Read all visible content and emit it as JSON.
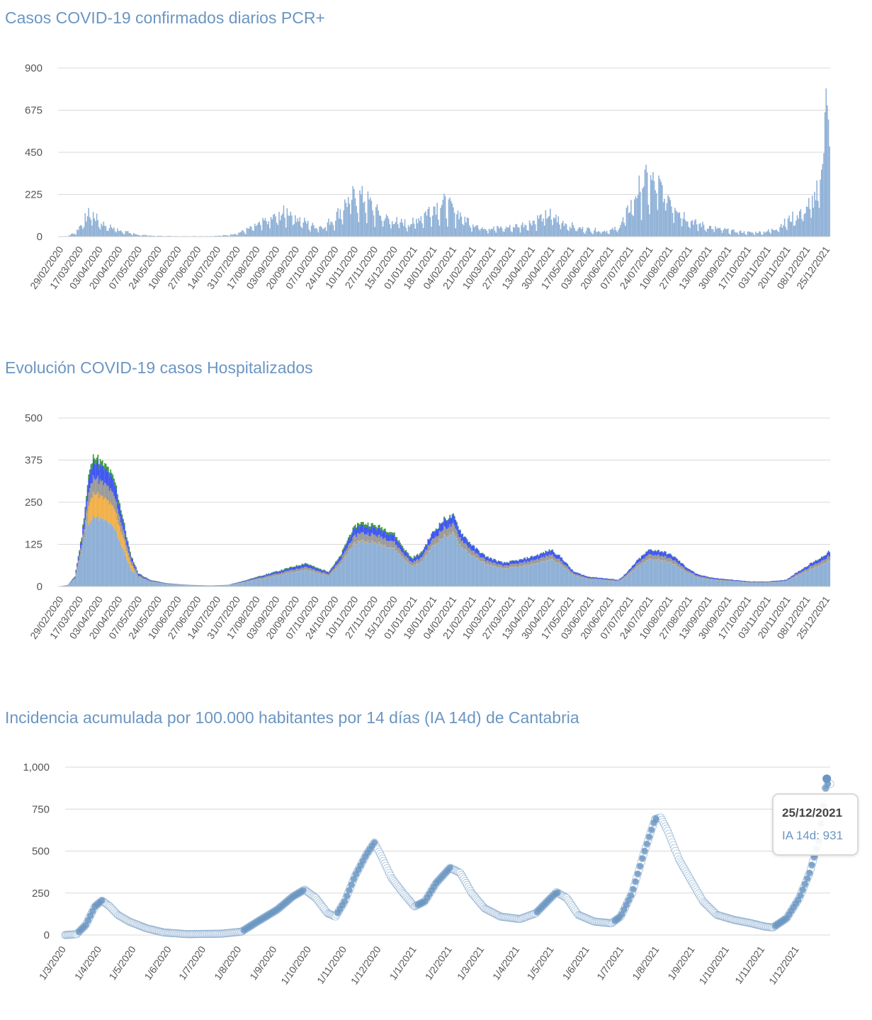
{
  "colors": {
    "title": "#6b96c2",
    "bars": "#8eb0d6",
    "bars_dark": "#7da2cb",
    "hosp_blue": "#3f56f2",
    "hosp_green": "#3e9a3a",
    "hosp_orange": "#f2b04a",
    "hosp_grey": "#9a9a9a",
    "points": "#6b96c2",
    "points_light": "#ffffff"
  },
  "tooltip": {
    "date": "25/12/2021",
    "value_text": "IA 14d: 931"
  },
  "chart_data": [
    {
      "id": "daily",
      "type": "bar",
      "title": "Casos COVID-19 confirmados diarios PCR+",
      "ylim": [
        0,
        900
      ],
      "yticks": [
        "0",
        "225",
        "450",
        "675",
        "900"
      ],
      "ytick_values": [
        0,
        225,
        450,
        675,
        900
      ],
      "xticks": [
        "29/02/2020",
        "17/03/2020",
        "03/04/2020",
        "20/04/2020",
        "07/05/2020",
        "24/05/2020",
        "10/06/2020",
        "27/06/2020",
        "14/07/2020",
        "31/07/2020",
        "17/08/2020",
        "03/09/2020",
        "20/09/2020",
        "07/10/2020",
        "24/10/2020",
        "10/11/2020",
        "27/11/2020",
        "15/12/2020",
        "01/01/2021",
        "18/01/2021",
        "04/02/2021",
        "21/02/2021",
        "10/03/2021",
        "27/03/2021",
        "13/04/2021",
        "30/04/2021",
        "17/05/2021",
        "03/06/2021",
        "20/06/2021",
        "07/07/2021",
        "24/07/2021",
        "10/08/2021",
        "27/08/2021",
        "13/09/2021",
        "30/09/2021",
        "17/10/2021",
        "03/11/2021",
        "20/11/2021",
        "08/12/2021",
        "25/12/2021"
      ],
      "x_start": "2020-02-29",
      "x_end": "2021-12-28",
      "series_anchors": [
        [
          "2020-02-29",
          0
        ],
        [
          "2020-03-08",
          3
        ],
        [
          "2020-03-15",
          25
        ],
        [
          "2020-03-22",
          90
        ],
        [
          "2020-03-28",
          135
        ],
        [
          "2020-04-02",
          95
        ],
        [
          "2020-04-10",
          60
        ],
        [
          "2020-04-20",
          40
        ],
        [
          "2020-05-01",
          20
        ],
        [
          "2020-05-10",
          8
        ],
        [
          "2020-05-25",
          4
        ],
        [
          "2020-06-15",
          2
        ],
        [
          "2020-07-10",
          3
        ],
        [
          "2020-07-25",
          8
        ],
        [
          "2020-08-05",
          25
        ],
        [
          "2020-08-15",
          50
        ],
        [
          "2020-08-25",
          80
        ],
        [
          "2020-09-05",
          110
        ],
        [
          "2020-09-15",
          140
        ],
        [
          "2020-09-25",
          95
        ],
        [
          "2020-10-05",
          60
        ],
        [
          "2020-10-15",
          55
        ],
        [
          "2020-10-25",
          100
        ],
        [
          "2020-11-01",
          160
        ],
        [
          "2020-11-08",
          210
        ],
        [
          "2020-11-15",
          220
        ],
        [
          "2020-11-22",
          200
        ],
        [
          "2020-11-30",
          140
        ],
        [
          "2020-12-10",
          95
        ],
        [
          "2020-12-20",
          80
        ],
        [
          "2020-12-30",
          70
        ],
        [
          "2021-01-08",
          110
        ],
        [
          "2021-01-18",
          160
        ],
        [
          "2021-01-28",
          180
        ],
        [
          "2021-02-05",
          150
        ],
        [
          "2021-02-15",
          100
        ],
        [
          "2021-02-25",
          60
        ],
        [
          "2021-03-10",
          45
        ],
        [
          "2021-03-25",
          50
        ],
        [
          "2021-04-10",
          70
        ],
        [
          "2021-04-20",
          100
        ],
        [
          "2021-04-30",
          120
        ],
        [
          "2021-05-10",
          80
        ],
        [
          "2021-05-25",
          45
        ],
        [
          "2021-06-10",
          35
        ],
        [
          "2021-06-20",
          30
        ],
        [
          "2021-06-28",
          50
        ],
        [
          "2021-07-05",
          120
        ],
        [
          "2021-07-12",
          220
        ],
        [
          "2021-07-20",
          300
        ],
        [
          "2021-07-28",
          290
        ],
        [
          "2021-08-05",
          260
        ],
        [
          "2021-08-15",
          190
        ],
        [
          "2021-08-25",
          110
        ],
        [
          "2021-09-05",
          70
        ],
        [
          "2021-09-20",
          45
        ],
        [
          "2021-10-05",
          30
        ],
        [
          "2021-10-20",
          22
        ],
        [
          "2021-11-01",
          25
        ],
        [
          "2021-11-10",
          40
        ],
        [
          "2021-11-20",
          80
        ],
        [
          "2021-11-30",
          120
        ],
        [
          "2021-12-08",
          160
        ],
        [
          "2021-12-15",
          210
        ],
        [
          "2021-12-20",
          280
        ],
        [
          "2021-12-23",
          460
        ],
        [
          "2021-12-25",
          850
        ],
        [
          "2021-12-26",
          730
        ],
        [
          "2021-12-27",
          600
        ],
        [
          "2021-12-28",
          460
        ]
      ]
    },
    {
      "id": "hosp",
      "type": "area",
      "title": "Evolución COVID-19 casos  Hospitalizados",
      "ylim": [
        0,
        500
      ],
      "yticks": [
        "0",
        "125",
        "250",
        "375",
        "500"
      ],
      "ytick_values": [
        0,
        125,
        250,
        375,
        500
      ],
      "xticks": [
        "29/02/2020",
        "17/03/2020",
        "03/04/2020",
        "20/04/2020",
        "07/05/2020",
        "24/05/2020",
        "10/06/2020",
        "27/06/2020",
        "14/07/2020",
        "31/07/2020",
        "17/08/2020",
        "03/09/2020",
        "20/09/2020",
        "07/10/2020",
        "24/10/2020",
        "10/11/2020",
        "27/11/2020",
        "15/12/2020",
        "01/01/2021",
        "18/01/2021",
        "04/02/2021",
        "21/02/2021",
        "10/03/2021",
        "27/03/2021",
        "13/04/2021",
        "30/04/2021",
        "17/05/2021",
        "03/06/2021",
        "20/06/2021",
        "07/07/2021",
        "24/07/2021",
        "10/08/2021",
        "27/08/2021",
        "13/09/2021",
        "30/09/2021",
        "17/10/2021",
        "03/11/2021",
        "20/11/2021",
        "08/12/2021",
        "25/12/2021"
      ],
      "x_start": "2020-02-29",
      "x_end": "2021-12-28",
      "series_anchors": [
        [
          "2020-02-29",
          0
        ],
        [
          "2020-03-08",
          5
        ],
        [
          "2020-03-14",
          30
        ],
        [
          "2020-03-20",
          150
        ],
        [
          "2020-03-26",
          330
        ],
        [
          "2020-03-31",
          395
        ],
        [
          "2020-04-05",
          370
        ],
        [
          "2020-04-12",
          350
        ],
        [
          "2020-04-18",
          310
        ],
        [
          "2020-04-25",
          200
        ],
        [
          "2020-05-01",
          100
        ],
        [
          "2020-05-08",
          40
        ],
        [
          "2020-05-18",
          20
        ],
        [
          "2020-06-01",
          10
        ],
        [
          "2020-06-20",
          5
        ],
        [
          "2020-07-10",
          3
        ],
        [
          "2020-07-25",
          5
        ],
        [
          "2020-08-05",
          15
        ],
        [
          "2020-08-20",
          30
        ],
        [
          "2020-09-05",
          45
        ],
        [
          "2020-09-20",
          60
        ],
        [
          "2020-09-30",
          70
        ],
        [
          "2020-10-10",
          55
        ],
        [
          "2020-10-20",
          45
        ],
        [
          "2020-10-30",
          90
        ],
        [
          "2020-11-08",
          160
        ],
        [
          "2020-11-15",
          190
        ],
        [
          "2020-11-25",
          185
        ],
        [
          "2020-12-05",
          175
        ],
        [
          "2020-12-15",
          160
        ],
        [
          "2020-12-25",
          110
        ],
        [
          "2020-12-31",
          85
        ],
        [
          "2021-01-08",
          100
        ],
        [
          "2021-01-18",
          160
        ],
        [
          "2021-01-28",
          200
        ],
        [
          "2021-02-05",
          210
        ],
        [
          "2021-02-12",
          160
        ],
        [
          "2021-02-22",
          120
        ],
        [
          "2021-03-05",
          90
        ],
        [
          "2021-03-20",
          70
        ],
        [
          "2021-04-05",
          80
        ],
        [
          "2021-04-20",
          95
        ],
        [
          "2021-05-01",
          110
        ],
        [
          "2021-05-10",
          85
        ],
        [
          "2021-05-20",
          45
        ],
        [
          "2021-06-01",
          30
        ],
        [
          "2021-06-15",
          25
        ],
        [
          "2021-06-28",
          20
        ],
        [
          "2021-07-05",
          40
        ],
        [
          "2021-07-15",
          80
        ],
        [
          "2021-07-25",
          110
        ],
        [
          "2021-08-05",
          105
        ],
        [
          "2021-08-15",
          90
        ],
        [
          "2021-08-25",
          60
        ],
        [
          "2021-09-05",
          35
        ],
        [
          "2021-09-20",
          25
        ],
        [
          "2021-10-05",
          20
        ],
        [
          "2021-10-20",
          15
        ],
        [
          "2021-11-05",
          15
        ],
        [
          "2021-11-20",
          20
        ],
        [
          "2021-12-01",
          45
        ],
        [
          "2021-12-10",
          65
        ],
        [
          "2021-12-20",
          85
        ],
        [
          "2021-12-28",
          105
        ]
      ],
      "overlays": {
        "blue_top_ratio": 0.12,
        "green_top_ratio": 0.04,
        "orange_peak_ratio": 0.18,
        "grey_ratio": 0.12
      }
    },
    {
      "id": "ia14",
      "type": "scatter",
      "title": "Incidencia acumulada por 100.000 habitantes por 14 días (IA 14d) de Cantabria",
      "ylim": [
        0,
        1000
      ],
      "yticks": [
        "0",
        "250",
        "500",
        "750",
        "1,000"
      ],
      "ytick_values": [
        0,
        250,
        500,
        750,
        1000
      ],
      "xticks": [
        "1/3/2020",
        "1/4/2020",
        "1/5/2020",
        "1/6/2020",
        "1/7/2020",
        "1/8/2020",
        "1/9/2020",
        "1/10/2020",
        "1/11/2020",
        "1/12/2020",
        "1/1/2021",
        "1/2/2021",
        "1/3/2021",
        "1/4/2021",
        "1/5/2021",
        "1/6/2021",
        "1/7/2021",
        "1/8/2021",
        "1/9/2021",
        "1/10/2021",
        "1/11/2021",
        "1/12/2021"
      ],
      "xtick_dates": [
        "2020-03-01",
        "2020-04-01",
        "2020-05-01",
        "2020-06-01",
        "2020-07-01",
        "2020-08-01",
        "2020-09-01",
        "2020-10-01",
        "2020-11-01",
        "2020-12-01",
        "2021-01-01",
        "2021-02-01",
        "2021-03-01",
        "2021-04-01",
        "2021-05-01",
        "2021-06-01",
        "2021-07-01",
        "2021-08-01",
        "2021-09-01",
        "2021-10-01",
        "2021-11-01",
        "2021-12-01"
      ],
      "x_start": "2020-02-29",
      "x_end": "2021-12-28",
      "series_anchors": [
        [
          "2020-02-29",
          0
        ],
        [
          "2020-03-10",
          5
        ],
        [
          "2020-03-18",
          60
        ],
        [
          "2020-03-26",
          170
        ],
        [
          "2020-04-01",
          205
        ],
        [
          "2020-04-08",
          170
        ],
        [
          "2020-04-15",
          120
        ],
        [
          "2020-04-25",
          80
        ],
        [
          "2020-05-10",
          40
        ],
        [
          "2020-05-25",
          15
        ],
        [
          "2020-06-15",
          5
        ],
        [
          "2020-07-15",
          8
        ],
        [
          "2020-08-01",
          20
        ],
        [
          "2020-08-15",
          80
        ],
        [
          "2020-09-01",
          150
        ],
        [
          "2020-09-15",
          230
        ],
        [
          "2020-09-25",
          270
        ],
        [
          "2020-10-05",
          220
        ],
        [
          "2020-10-15",
          130
        ],
        [
          "2020-10-22",
          110
        ],
        [
          "2020-10-30",
          200
        ],
        [
          "2020-11-08",
          350
        ],
        [
          "2020-11-18",
          480
        ],
        [
          "2020-11-25",
          550
        ],
        [
          "2020-12-01",
          470
        ],
        [
          "2020-12-10",
          340
        ],
        [
          "2020-12-20",
          250
        ],
        [
          "2020-12-30",
          170
        ],
        [
          "2021-01-08",
          200
        ],
        [
          "2021-01-18",
          310
        ],
        [
          "2021-01-30",
          400
        ],
        [
          "2021-02-08",
          370
        ],
        [
          "2021-02-18",
          250
        ],
        [
          "2021-03-01",
          160
        ],
        [
          "2021-03-15",
          110
        ],
        [
          "2021-04-01",
          95
        ],
        [
          "2021-04-15",
          130
        ],
        [
          "2021-04-25",
          200
        ],
        [
          "2021-05-03",
          255
        ],
        [
          "2021-05-12",
          220
        ],
        [
          "2021-05-22",
          120
        ],
        [
          "2021-06-05",
          80
        ],
        [
          "2021-06-20",
          70
        ],
        [
          "2021-06-28",
          110
        ],
        [
          "2021-07-08",
          250
        ],
        [
          "2021-07-18",
          480
        ],
        [
          "2021-07-28",
          690
        ],
        [
          "2021-08-02",
          700
        ],
        [
          "2021-08-08",
          620
        ],
        [
          "2021-08-18",
          450
        ],
        [
          "2021-08-28",
          330
        ],
        [
          "2021-09-08",
          200
        ],
        [
          "2021-09-20",
          120
        ],
        [
          "2021-10-05",
          90
        ],
        [
          "2021-10-20",
          70
        ],
        [
          "2021-11-01",
          50
        ],
        [
          "2021-11-08",
          45
        ],
        [
          "2021-11-20",
          100
        ],
        [
          "2021-12-01",
          220
        ],
        [
          "2021-12-10",
          370
        ],
        [
          "2021-12-18",
          560
        ],
        [
          "2021-12-23",
          820
        ],
        [
          "2021-12-25",
          931
        ],
        [
          "2021-12-26",
          900
        ]
      ],
      "highlight": {
        "x": "2021-12-25",
        "y": 931
      }
    }
  ],
  "page": {
    "title1": "Casos COVID-19 confirmados diarios PCR+",
    "title2": "Evolución COVID-19 casos  Hospitalizados",
    "title3": "Incidencia acumulada por 100.000 habitantes por 14 días (IA 14d) de Cantabria"
  }
}
